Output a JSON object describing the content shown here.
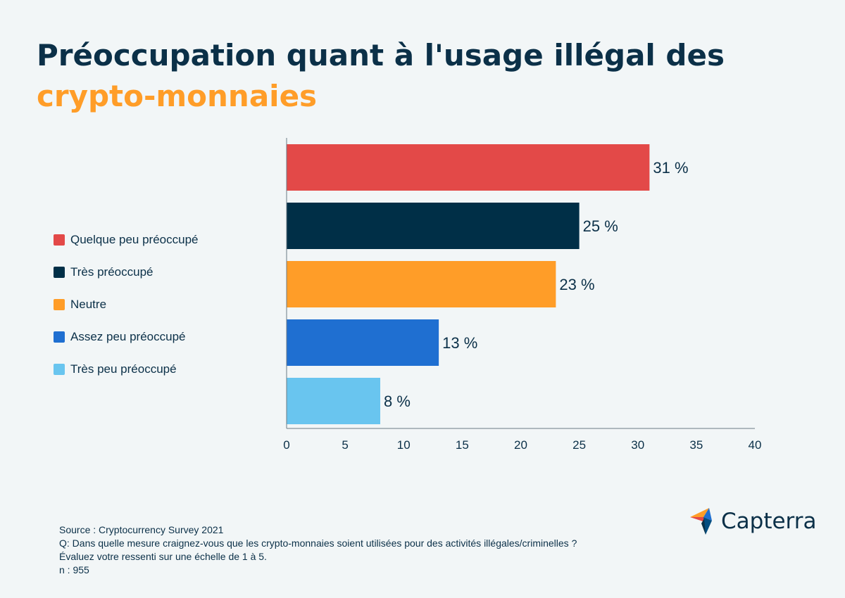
{
  "title": {
    "line1": "Préoccupation quant à l'usage illégal des",
    "line2": "crypto-monnaies"
  },
  "colors": {
    "title": "#0b3048",
    "accent": "#ff9d28"
  },
  "chart_data": {
    "type": "bar",
    "orientation": "horizontal",
    "categories": [
      "Quelque peu préoccupé",
      "Très préoccupé",
      "Neutre",
      "Assez peu préoccupé",
      "Très peu préoccupé"
    ],
    "values": [
      31,
      25,
      23,
      13,
      8
    ],
    "value_labels": [
      "31 %",
      "25 %",
      "23 %",
      "13 %",
      "8 %"
    ],
    "colors": [
      "#e34948",
      "#002f47",
      "#ff9d28",
      "#1f6fd1",
      "#69c5ef"
    ],
    "xlim": [
      0,
      40
    ],
    "xticks": [
      0,
      5,
      10,
      15,
      20,
      25,
      30,
      35,
      40
    ],
    "legend_position": "left",
    "grid": false
  },
  "footer": {
    "source": "Source : Cryptocurrency Survey 2021",
    "question": "Q: Dans quelle mesure craignez-vous que les crypto-monnaies soient utilisées pour des activités illégales/criminelles ?",
    "scale": "Évaluez votre ressenti sur une échelle de 1 à 5.",
    "n": "n : 955"
  },
  "logo": {
    "text": "Capterra",
    "icon": "capterra-arrow-icon"
  }
}
